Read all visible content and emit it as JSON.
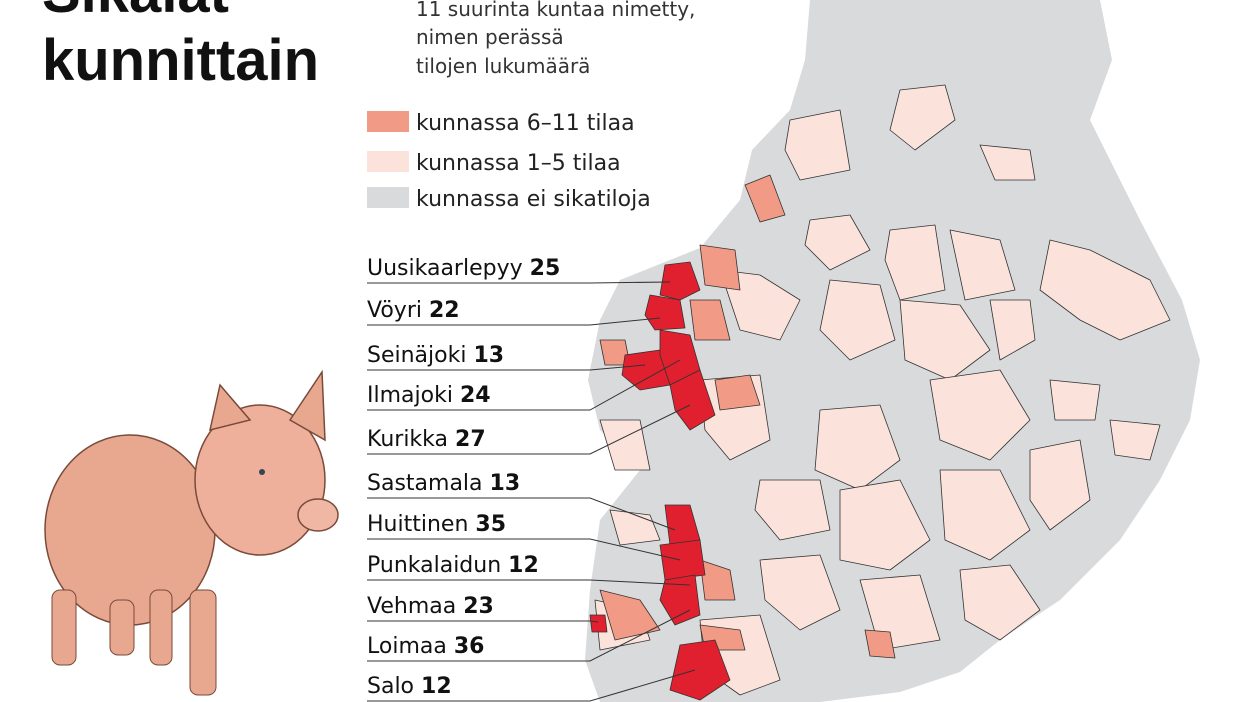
{
  "title": {
    "lines": [
      "Sikalat",
      "kunnittain"
    ]
  },
  "subtitle": {
    "lines": [
      "11 suurinta kuntaa nimetty,",
      "nimen perässä",
      "tilojen lukumäärä"
    ]
  },
  "legend": [
    {
      "label": "kunnassa 6–11 tilaa",
      "color": "#f19a86"
    },
    {
      "label": "kunnassa 1–5 tilaa",
      "color": "#fbe3dc"
    },
    {
      "label": "kunnassa ei sikatiloja",
      "color": "#d9dadb"
    }
  ],
  "municipalities": [
    {
      "name": "Uusikaarlepyy",
      "count": "25"
    },
    {
      "name": "Vöyri",
      "count": "22"
    },
    {
      "name": "Seinäjoki",
      "count": "13"
    },
    {
      "name": "Ilmajoki",
      "count": "24"
    },
    {
      "name": "Kurikka",
      "count": "27"
    },
    {
      "name": "Sastamala",
      "count": "13"
    },
    {
      "name": "Huittinen",
      "count": "35"
    },
    {
      "name": "Punkalaidun",
      "count": "12"
    },
    {
      "name": "Vehmaa",
      "count": "23"
    },
    {
      "name": "Loimaa",
      "count": "36"
    },
    {
      "name": "Salo",
      "count": "12"
    }
  ]
}
